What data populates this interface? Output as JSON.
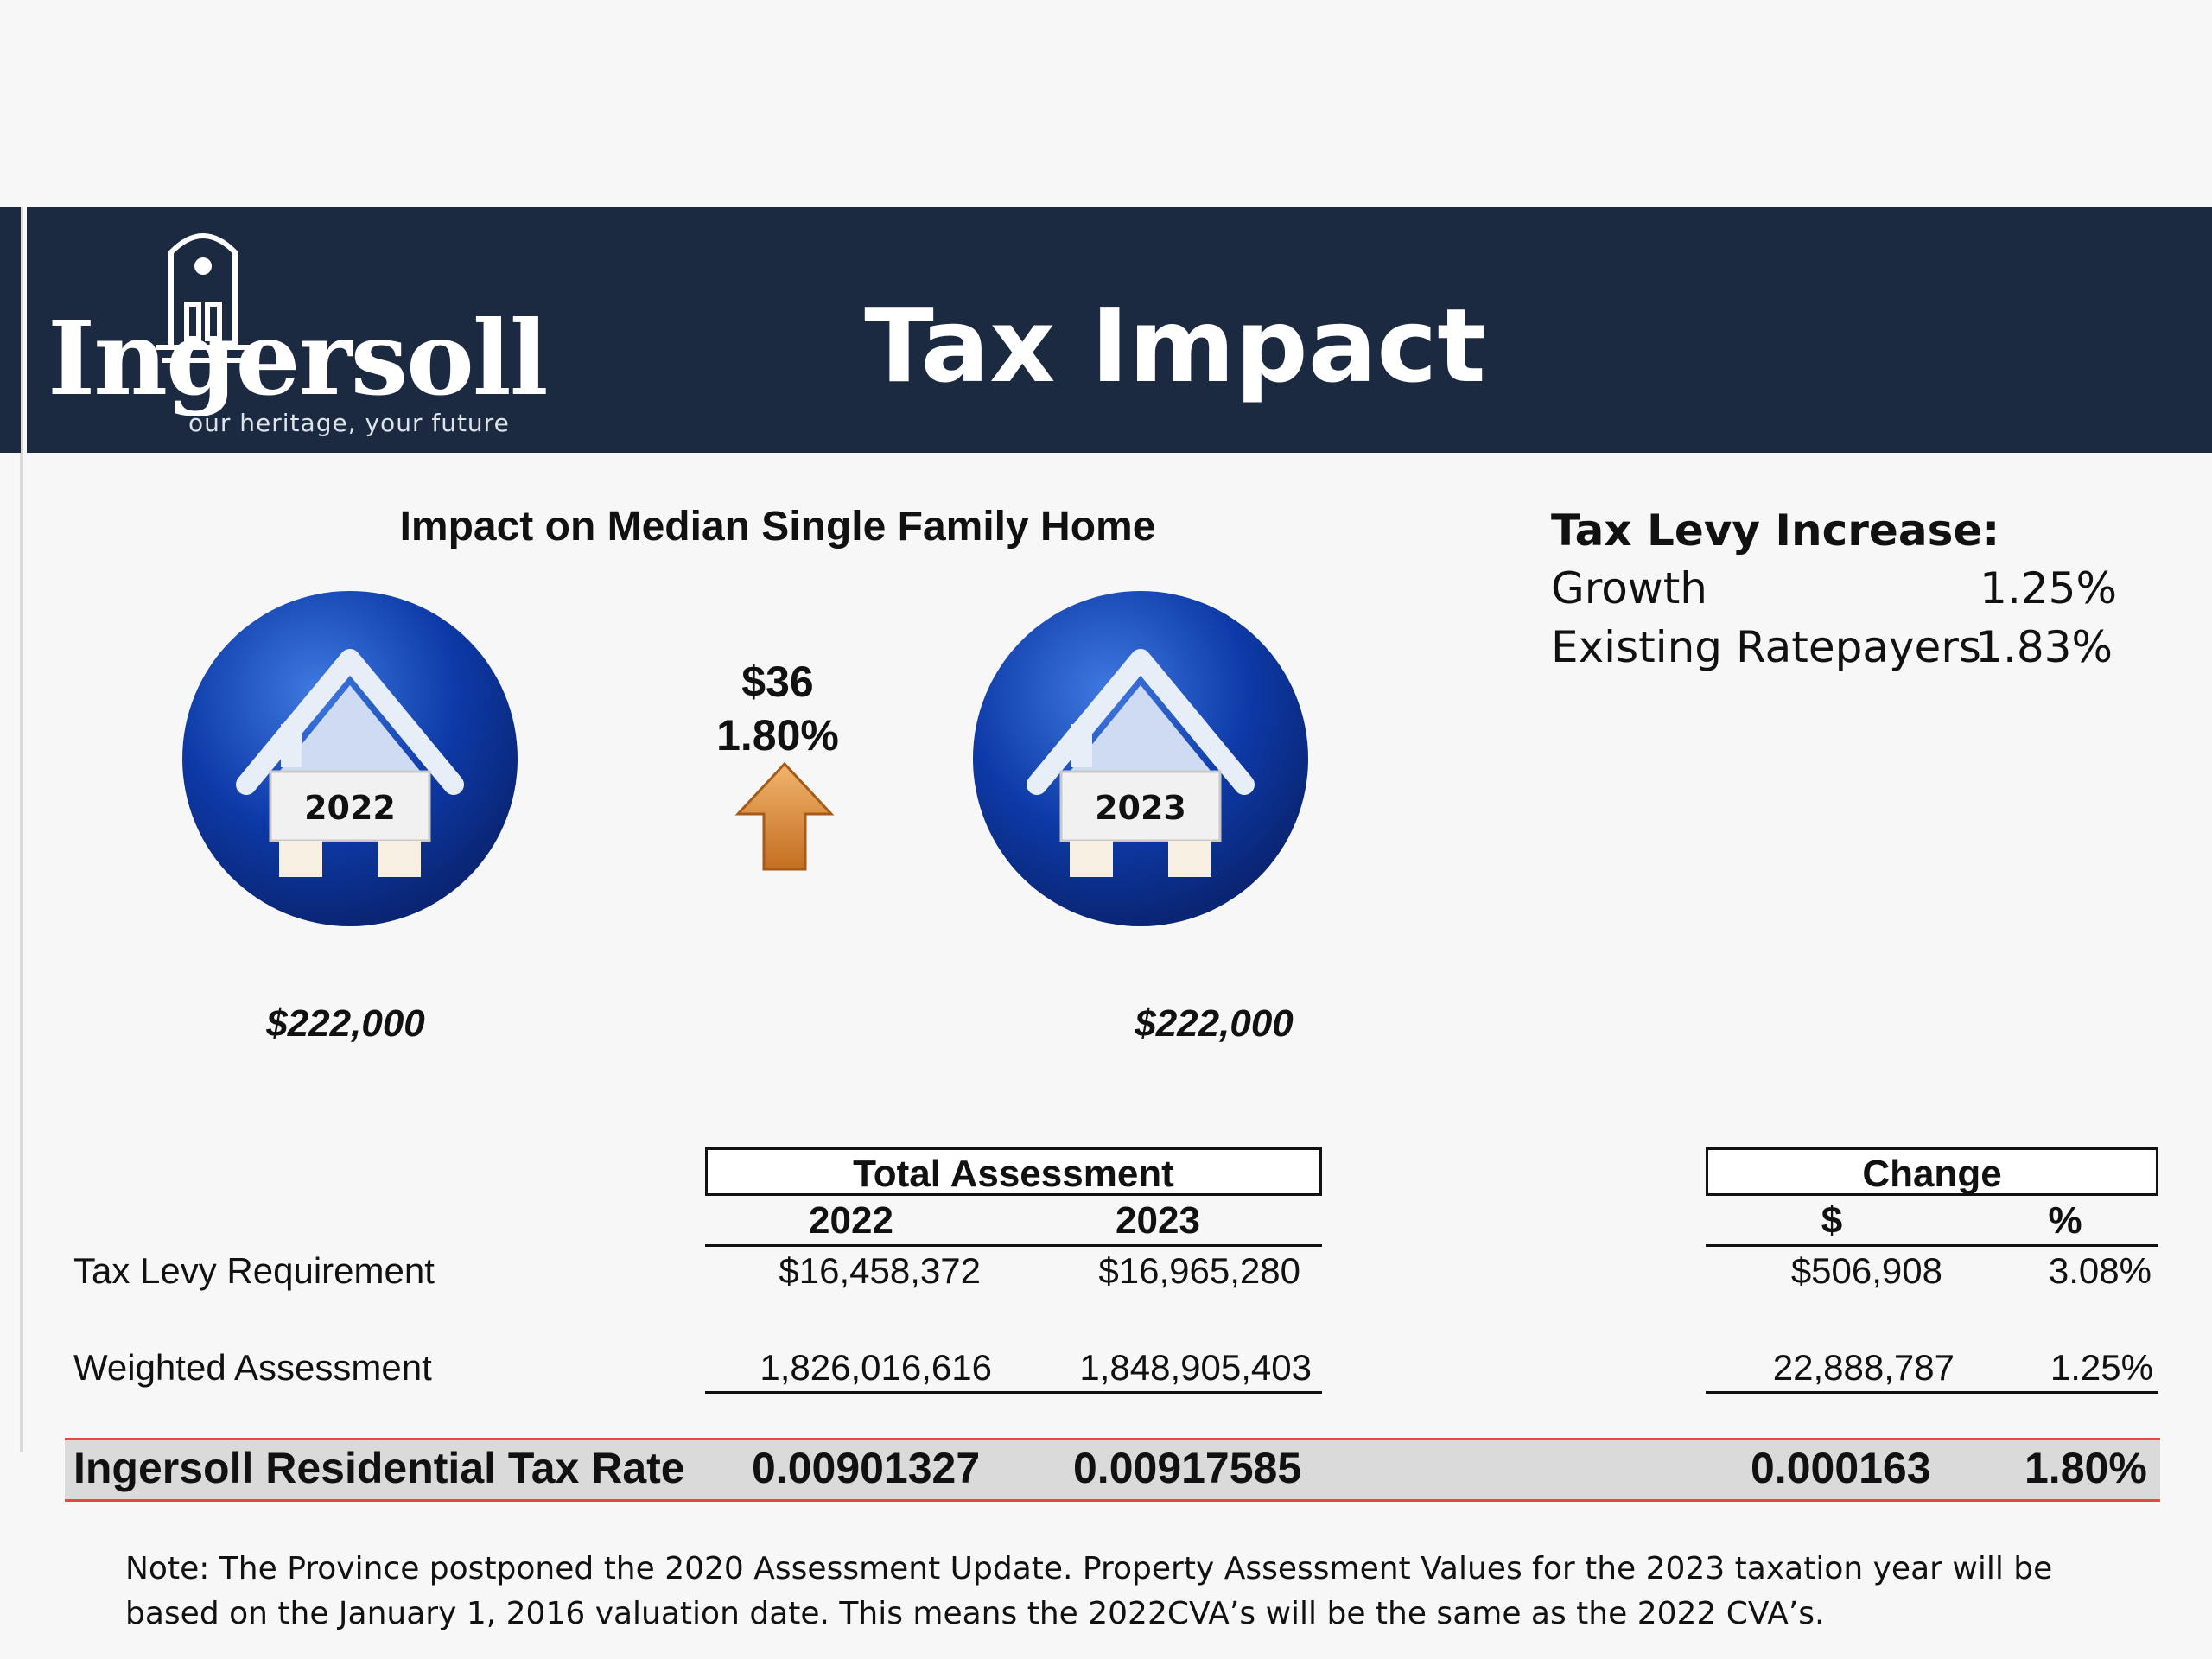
{
  "header": {
    "brand_name": "Ingersoll",
    "brand_tagline": "our heritage, your future",
    "title": "Tax Impact"
  },
  "median_home": {
    "title": "Impact on Median Single Family Home",
    "home_2022": {
      "year": "2022",
      "value": "$222,000"
    },
    "home_2023": {
      "year": "2023",
      "value": "$222,000"
    },
    "change_amount": "$36",
    "change_percent": "1.80%"
  },
  "levy_increase": {
    "title": "Tax Levy Increase:",
    "rows": [
      {
        "label": "Growth",
        "value": "1.25%"
      },
      {
        "label": "Existing Ratepayers",
        "value": "1.83%"
      }
    ]
  },
  "table": {
    "total_assessment_header": "Total Assessment",
    "change_header": "Change",
    "columns": {
      "y2022": "2022",
      "y2023": "2023",
      "dollar": "$",
      "percent": "%"
    },
    "rows": [
      {
        "label": "Tax Levy Requirement",
        "v2022": "$16,458,372",
        "v2023": "$16,965,280",
        "change": "$506,908",
        "pct": "3.08%"
      },
      {
        "label": "Weighted Assessment",
        "v2022": "1,826,016,616",
        "v2023": "1,848,905,403",
        "change": "22,888,787",
        "pct": "1.25%"
      }
    ],
    "rate_row": {
      "label": "Ingersoll Residential Tax Rate",
      "v2022": "0.00901327",
      "v2023": "0.00917585",
      "change": "0.000163",
      "pct": "1.80%"
    }
  },
  "note": {
    "line1": "Note: The Province postponed the 2020 Assessment Update. Property Assessment Values for the 2023 taxation year will be",
    "line2": "based on the January 1, 2016 valuation date. This means the 2022CVA’s will be the same as the 2022 CVA’s."
  },
  "colors": {
    "header_bg": "#1b2a41",
    "house_blue": "#0d3aa8",
    "arrow_orange": "#d8863a",
    "rate_rule_red": "#e24a4a"
  }
}
